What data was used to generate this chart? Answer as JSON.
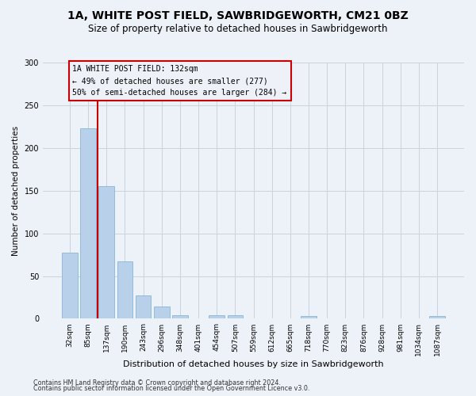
{
  "title_line1": "1A, WHITE POST FIELD, SAWBRIDGEWORTH, CM21 0BZ",
  "title_line2": "Size of property relative to detached houses in Sawbridgeworth",
  "xlabel": "Distribution of detached houses by size in Sawbridgeworth",
  "ylabel": "Number of detached properties",
  "bar_color": "#b8d0ea",
  "bar_edge_color": "#7aafd4",
  "grid_color": "#c8d4e0",
  "vline_color": "#cc0000",
  "annotation_box_edgecolor": "#cc0000",
  "annotation_bg": "#eef2f8",
  "bin_labels": [
    "32sqm",
    "85sqm",
    "137sqm",
    "190sqm",
    "243sqm",
    "296sqm",
    "348sqm",
    "401sqm",
    "454sqm",
    "507sqm",
    "559sqm",
    "612sqm",
    "665sqm",
    "718sqm",
    "770sqm",
    "823sqm",
    "876sqm",
    "928sqm",
    "981sqm",
    "1034sqm",
    "1087sqm"
  ],
  "bar_values": [
    77,
    223,
    155,
    67,
    27,
    14,
    4,
    0,
    4,
    4,
    0,
    0,
    0,
    3,
    0,
    0,
    0,
    0,
    0,
    0,
    3
  ],
  "vline_bin_index": 2,
  "annotation_text": "1A WHITE POST FIELD: 132sqm\n← 49% of detached houses are smaller (277)\n50% of semi-detached houses are larger (284) →",
  "ylim": [
    0,
    300
  ],
  "yticks": [
    0,
    50,
    100,
    150,
    200,
    250,
    300
  ],
  "footnote_line1": "Contains HM Land Registry data © Crown copyright and database right 2024.",
  "footnote_line2": "Contains public sector information licensed under the Open Government Licence v3.0.",
  "bg_color": "#edf2f8",
  "title_fontsize": 10,
  "subtitle_fontsize": 8.5,
  "xlabel_fontsize": 8,
  "ylabel_fontsize": 7.5,
  "tick_fontsize": 6.5,
  "footnote_fontsize": 5.8
}
